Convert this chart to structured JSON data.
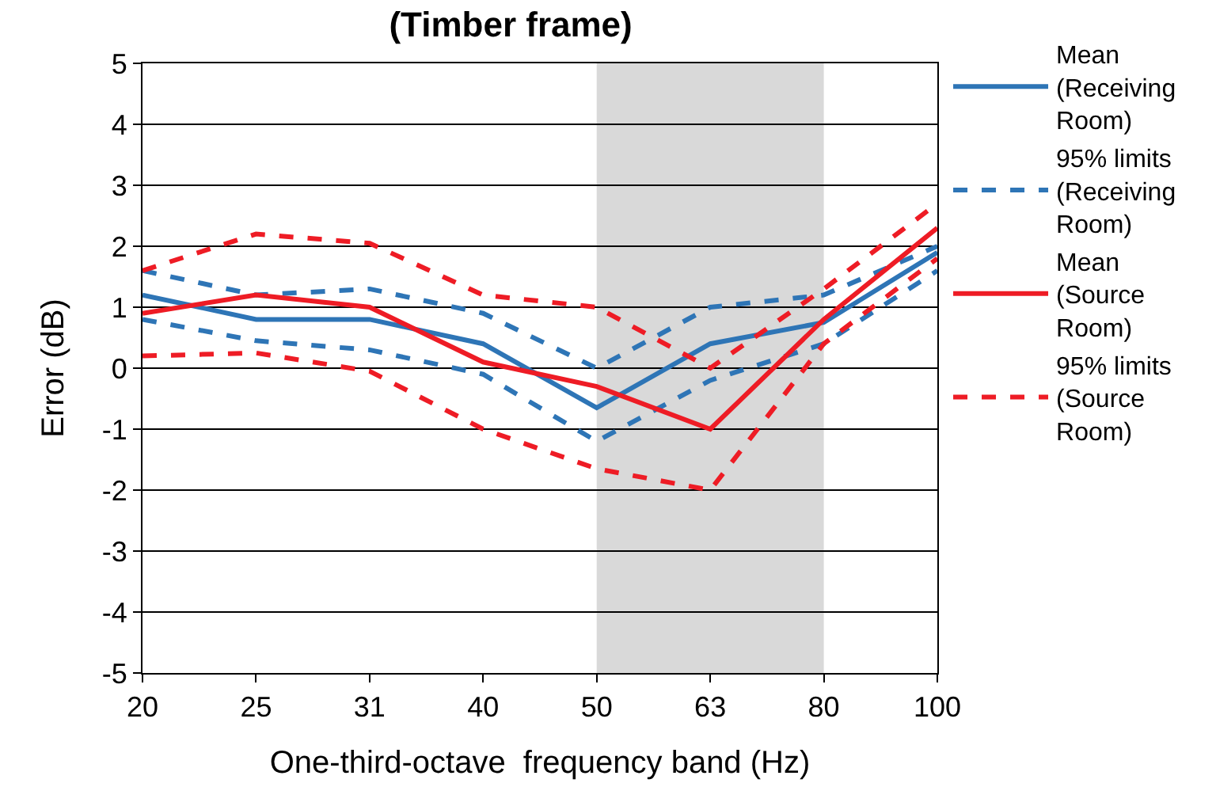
{
  "chart_data": {
    "type": "line",
    "title": "(Timber frame)",
    "xlabel": "One-third-octave  frequency band (Hz)",
    "ylabel": "Error (dB)",
    "categories": [
      "20",
      "25",
      "31",
      "40",
      "50",
      "63",
      "80",
      "100"
    ],
    "series": [
      {
        "name": "Mean (Receiving Room)",
        "color": "#2e75b6",
        "line_style": "solid",
        "values": [
          1.2,
          0.8,
          0.8,
          0.4,
          -0.65,
          0.4,
          0.75,
          1.9
        ]
      },
      {
        "name": "95% limits (Receiving Room)",
        "color": "#2e75b6",
        "line_style": "dashed",
        "values": [
          1.6,
          1.2,
          1.3,
          0.9,
          0.0,
          1.0,
          1.2,
          2.0
        ]
      },
      {
        "color": "#2e75b6",
        "line_style": "dashed",
        "values": [
          0.8,
          0.45,
          0.3,
          -0.1,
          -1.2,
          -0.2,
          0.4,
          1.6
        ]
      },
      {
        "name": "Mean (Source Room)",
        "color": "#ee1c25",
        "line_style": "solid",
        "values": [
          0.9,
          1.2,
          1.0,
          0.1,
          -0.3,
          -1.0,
          0.8,
          2.3
        ]
      },
      {
        "name": "95% limits (Source Room)",
        "color": "#ee1c25",
        "line_style": "dashed",
        "values": [
          1.6,
          2.2,
          2.05,
          1.2,
          1.0,
          0.0,
          1.3,
          2.7
        ]
      },
      {
        "color": "#ee1c25",
        "line_style": "dashed",
        "values": [
          0.2,
          0.25,
          -0.05,
          -1.0,
          -1.65,
          -2.0,
          0.4,
          1.8
        ]
      }
    ],
    "bands": [
      {
        "axis": "x",
        "from": "50",
        "to": "80",
        "color": "#d9d9d9"
      }
    ],
    "ylim": [
      -5,
      5
    ],
    "yticks": [
      -5,
      -4,
      -3,
      -2,
      -1,
      0,
      1,
      2,
      3,
      4,
      5
    ],
    "grid": "y",
    "legend": "right",
    "marker": "none"
  }
}
